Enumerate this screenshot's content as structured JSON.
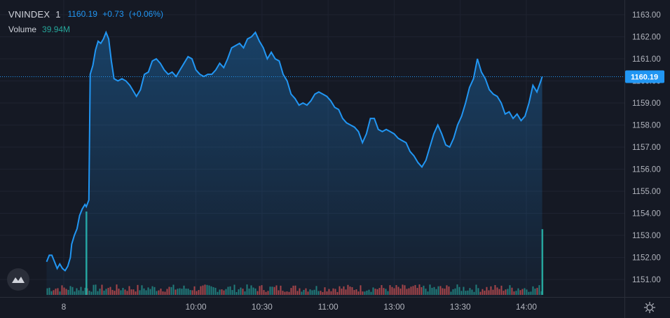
{
  "legend": {
    "symbol": "VNINDEX",
    "interval": "1",
    "last": "1160.19",
    "change": "+0.73",
    "change_pct": "(+0.06%)",
    "volume_label": "Volume",
    "volume_value": "39.94M"
  },
  "price_badge": "1160.19",
  "colors": {
    "background": "#151924",
    "line": "#2196f3",
    "up_volume": "#26a69a",
    "down_volume": "#ef5350",
    "grid": "#1e2230"
  },
  "icons": {
    "logo": "tradingview-logo-icon",
    "settings": "gear-icon"
  },
  "chart_data": {
    "type": "area",
    "symbol": "VNINDEX",
    "title": "",
    "xlabel": "",
    "ylabel": "",
    "ylim": [
      1150.5,
      1163.3
    ],
    "grid": true,
    "y_ticks": [
      "1163.00",
      "1162.00",
      "1161.00",
      "1160.00",
      "1159.00",
      "1158.00",
      "1157.00",
      "1156.00",
      "1155.00",
      "1154.00",
      "1153.00",
      "1152.00",
      "1151.00"
    ],
    "x_ticks": [
      {
        "label": "8",
        "t": 9.0
      },
      {
        "label": "10:00",
        "t": 10.0
      },
      {
        "label": "10:30",
        "t": 10.5
      },
      {
        "label": "11:00",
        "t": 11.0
      },
      {
        "label": "13:00",
        "t": 11.5
      },
      {
        "label": "13:30",
        "t": 12.0
      },
      {
        "label": "14:00",
        "t": 12.5
      }
    ],
    "x_range": [
      8.87,
      13.02
    ],
    "series": [
      {
        "points": [
          [
            8.87,
            1151.8
          ],
          [
            8.89,
            1152.1
          ],
          [
            8.91,
            1152.1
          ],
          [
            8.93,
            1151.8
          ],
          [
            8.95,
            1151.5
          ],
          [
            8.97,
            1151.7
          ],
          [
            8.99,
            1151.5
          ],
          [
            9.01,
            1151.4
          ],
          [
            9.03,
            1151.6
          ],
          [
            9.05,
            1152.0
          ],
          [
            9.06,
            1152.6
          ],
          [
            9.08,
            1153.0
          ],
          [
            9.1,
            1153.3
          ],
          [
            9.12,
            1153.9
          ],
          [
            9.14,
            1154.2
          ],
          [
            9.16,
            1154.4
          ],
          [
            9.17,
            1154.3
          ],
          [
            9.19,
            1154.6
          ],
          [
            9.2,
            1160.3
          ],
          [
            9.22,
            1160.7
          ],
          [
            9.24,
            1161.4
          ],
          [
            9.26,
            1161.8
          ],
          [
            9.28,
            1161.7
          ],
          [
            9.3,
            1161.9
          ],
          [
            9.32,
            1162.2
          ],
          [
            9.34,
            1161.9
          ],
          [
            9.36,
            1160.9
          ],
          [
            9.38,
            1160.1
          ],
          [
            9.41,
            1160.0
          ],
          [
            9.44,
            1160.1
          ],
          [
            9.47,
            1160.0
          ],
          [
            9.5,
            1159.8
          ],
          [
            9.52,
            1159.6
          ],
          [
            9.55,
            1159.3
          ],
          [
            9.58,
            1159.6
          ],
          [
            9.61,
            1160.3
          ],
          [
            9.64,
            1160.4
          ],
          [
            9.67,
            1160.9
          ],
          [
            9.7,
            1161.0
          ],
          [
            9.73,
            1160.8
          ],
          [
            9.76,
            1160.5
          ],
          [
            9.79,
            1160.3
          ],
          [
            9.82,
            1160.4
          ],
          [
            9.85,
            1160.2
          ],
          [
            9.88,
            1160.5
          ],
          [
            9.91,
            1160.8
          ],
          [
            9.94,
            1161.1
          ],
          [
            9.97,
            1161.0
          ],
          [
            10.0,
            1160.5
          ],
          [
            10.03,
            1160.3
          ],
          [
            10.06,
            1160.2
          ],
          [
            10.09,
            1160.3
          ],
          [
            10.12,
            1160.3
          ],
          [
            10.15,
            1160.5
          ],
          [
            10.18,
            1160.8
          ],
          [
            10.21,
            1160.6
          ],
          [
            10.24,
            1161.0
          ],
          [
            10.27,
            1161.5
          ],
          [
            10.3,
            1161.6
          ],
          [
            10.33,
            1161.7
          ],
          [
            10.36,
            1161.5
          ],
          [
            10.39,
            1161.9
          ],
          [
            10.42,
            1162.0
          ],
          [
            10.45,
            1162.2
          ],
          [
            10.48,
            1161.8
          ],
          [
            10.51,
            1161.5
          ],
          [
            10.54,
            1161.0
          ],
          [
            10.57,
            1161.3
          ],
          [
            10.6,
            1161.0
          ],
          [
            10.63,
            1160.9
          ],
          [
            10.66,
            1160.3
          ],
          [
            10.69,
            1160.0
          ],
          [
            10.72,
            1159.4
          ],
          [
            10.75,
            1159.2
          ],
          [
            10.78,
            1158.9
          ],
          [
            10.81,
            1159.0
          ],
          [
            10.84,
            1158.9
          ],
          [
            10.87,
            1159.1
          ],
          [
            10.9,
            1159.4
          ],
          [
            10.93,
            1159.5
          ],
          [
            10.96,
            1159.4
          ],
          [
            10.99,
            1159.3
          ],
          [
            11.02,
            1159.1
          ],
          [
            11.05,
            1158.8
          ],
          [
            11.08,
            1158.7
          ],
          [
            11.11,
            1158.3
          ],
          [
            11.14,
            1158.1
          ],
          [
            11.17,
            1158.0
          ],
          [
            11.2,
            1157.9
          ],
          [
            11.23,
            1157.7
          ],
          [
            11.26,
            1157.2
          ],
          [
            11.29,
            1157.6
          ],
          [
            11.32,
            1158.3
          ],
          [
            11.35,
            1158.3
          ],
          [
            11.38,
            1157.8
          ],
          [
            11.41,
            1157.7
          ],
          [
            11.44,
            1157.8
          ],
          [
            11.47,
            1157.7
          ],
          [
            11.5,
            1157.6
          ],
          [
            11.53,
            1157.4
          ],
          [
            11.56,
            1157.3
          ],
          [
            11.59,
            1157.2
          ],
          [
            11.62,
            1156.8
          ],
          [
            11.65,
            1156.6
          ],
          [
            11.68,
            1156.3
          ],
          [
            11.71,
            1156.1
          ],
          [
            11.74,
            1156.4
          ],
          [
            11.77,
            1157.0
          ],
          [
            11.8,
            1157.6
          ],
          [
            11.83,
            1158.0
          ],
          [
            11.86,
            1157.6
          ],
          [
            11.89,
            1157.1
          ],
          [
            11.92,
            1157.0
          ],
          [
            11.95,
            1157.4
          ],
          [
            11.98,
            1158.0
          ],
          [
            12.01,
            1158.4
          ],
          [
            12.04,
            1159.0
          ],
          [
            12.07,
            1159.7
          ],
          [
            12.1,
            1160.1
          ],
          [
            12.13,
            1161.0
          ],
          [
            12.16,
            1160.4
          ],
          [
            12.19,
            1160.1
          ],
          [
            12.22,
            1159.6
          ],
          [
            12.25,
            1159.4
          ],
          [
            12.28,
            1159.3
          ],
          [
            12.31,
            1159.0
          ],
          [
            12.34,
            1158.5
          ],
          [
            12.37,
            1158.6
          ],
          [
            12.4,
            1158.3
          ],
          [
            12.43,
            1158.5
          ],
          [
            12.46,
            1158.2
          ],
          [
            12.49,
            1158.4
          ],
          [
            12.52,
            1159.0
          ],
          [
            12.55,
            1159.8
          ],
          [
            12.58,
            1159.5
          ],
          [
            12.61,
            1160.0
          ],
          [
            12.62,
            1160.19
          ]
        ]
      }
    ],
    "volume": {
      "open_spike": {
        "t": 9.17,
        "value": 0.85
      },
      "close_spike": {
        "t": 12.62,
        "value": 0.67
      }
    },
    "last_value": 1160.19
  }
}
